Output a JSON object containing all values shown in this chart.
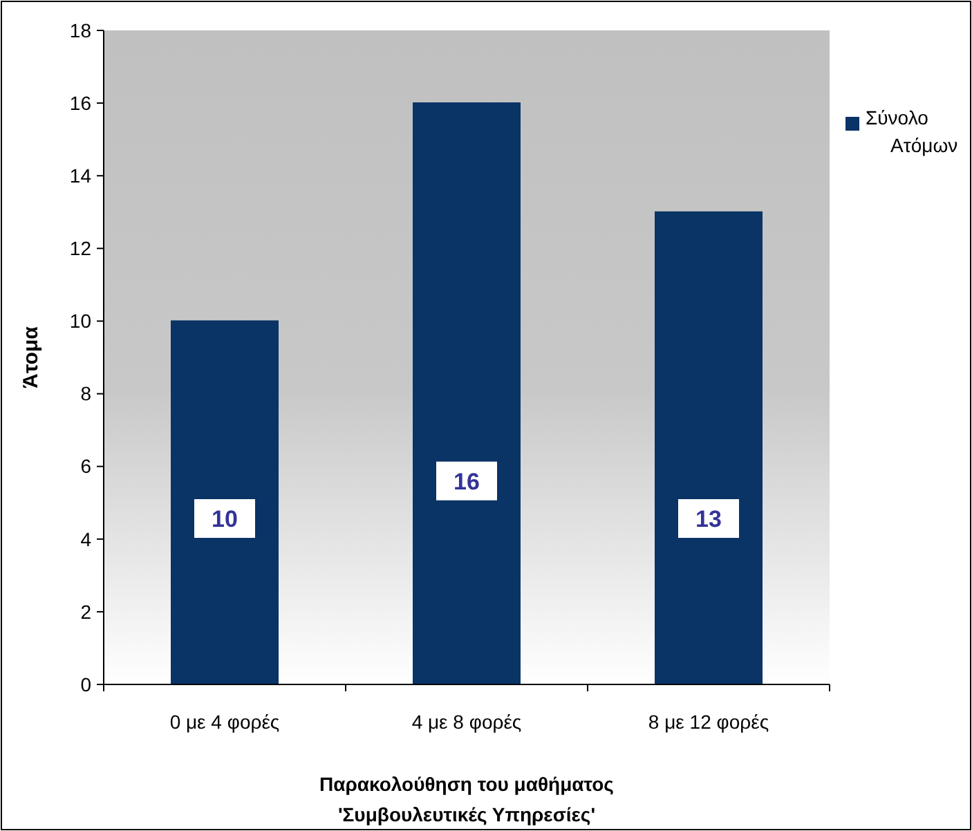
{
  "chart_data": {
    "type": "bar",
    "xlabel": "Παρακολούθηση του μαθήματος\n'Συμβουλευτικές Υπηρεσίες'",
    "ylabel": "Άτομα",
    "categories": [
      "0 με 4 φορές",
      "4 με 8 φορές",
      "8 με 12 φορές"
    ],
    "series": [
      {
        "name": "Σύνολο Ατόμων",
        "color": "#0a3366",
        "values": [
          10,
          16,
          13
        ]
      }
    ],
    "ylim": [
      0,
      18
    ],
    "yticks": [
      0,
      2,
      4,
      6,
      8,
      10,
      12,
      14,
      16,
      18
    ],
    "grid": false,
    "legend": "right",
    "data_labels": true
  }
}
